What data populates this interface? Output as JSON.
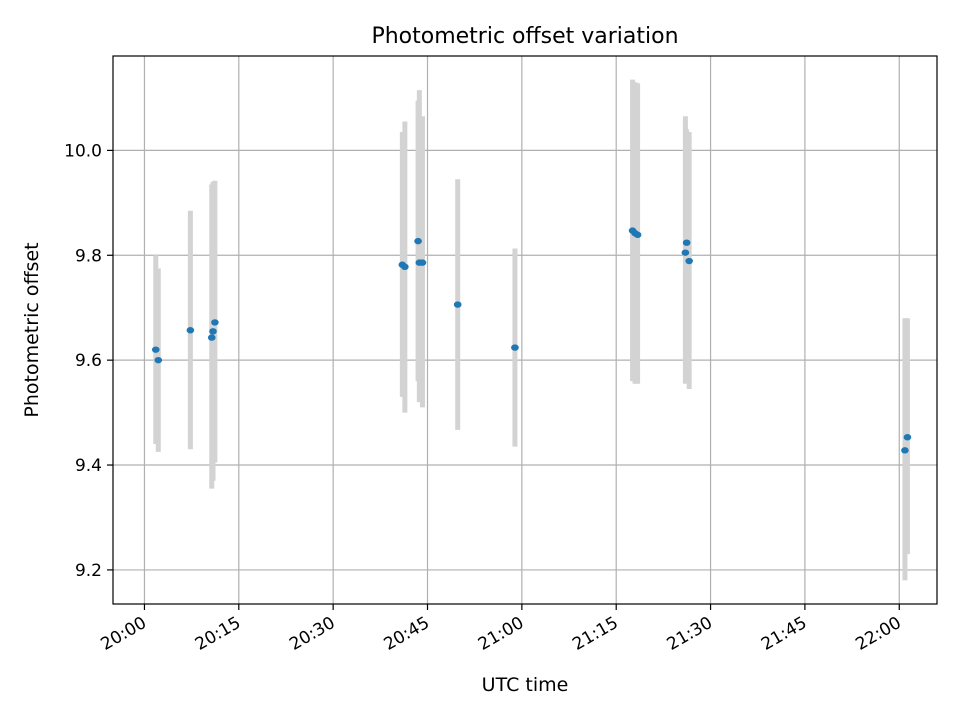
{
  "chart_data": {
    "type": "scatter",
    "title": "Photometric offset variation",
    "xlabel": "UTC time",
    "ylabel": "Photometric offset",
    "x_unit": "minutes after 20:00 UTC",
    "xlim": [
      -5,
      126
    ],
    "ylim": [
      9.135,
      10.18
    ],
    "grid": true,
    "marker_color": "#1f77b4",
    "errorbar_color": "#d3d3d3",
    "x_ticks": [
      {
        "value": 0,
        "label": "20:00"
      },
      {
        "value": 15,
        "label": "20:15"
      },
      {
        "value": 30,
        "label": "20:30"
      },
      {
        "value": 45,
        "label": "20:45"
      },
      {
        "value": 60,
        "label": "21:00"
      },
      {
        "value": 75,
        "label": "21:15"
      },
      {
        "value": 90,
        "label": "21:30"
      },
      {
        "value": 105,
        "label": "21:45"
      },
      {
        "value": 120,
        "label": "22:00"
      }
    ],
    "y_ticks": [
      {
        "value": 9.2,
        "label": "9.2"
      },
      {
        "value": 9.4,
        "label": "9.4"
      },
      {
        "value": 9.6,
        "label": "9.6"
      },
      {
        "value": 9.8,
        "label": "9.8"
      },
      {
        "value": 10.0,
        "label": "10.0"
      }
    ],
    "points": [
      {
        "x": 1.8,
        "y": 9.62,
        "err_low": 9.44,
        "err_high": 9.8
      },
      {
        "x": 2.2,
        "y": 9.6,
        "err_low": 9.425,
        "err_high": 9.775
      },
      {
        "x": 7.3,
        "y": 9.657,
        "err_low": 9.43,
        "err_high": 9.885
      },
      {
        "x": 10.7,
        "y": 9.643,
        "err_low": 9.355,
        "err_high": 9.935
      },
      {
        "x": 10.9,
        "y": 9.655,
        "err_low": 9.37,
        "err_high": 9.94
      },
      {
        "x": 11.2,
        "y": 9.672,
        "err_low": 9.405,
        "err_high": 9.942
      },
      {
        "x": 41.0,
        "y": 9.782,
        "err_low": 9.53,
        "err_high": 10.035
      },
      {
        "x": 41.4,
        "y": 9.778,
        "err_low": 9.5,
        "err_high": 10.055
      },
      {
        "x": 43.5,
        "y": 9.827,
        "err_low": 9.56,
        "err_high": 10.095
      },
      {
        "x": 43.7,
        "y": 9.786,
        "err_low": 9.52,
        "err_high": 10.115
      },
      {
        "x": 44.2,
        "y": 9.786,
        "err_low": 9.51,
        "err_high": 10.065
      },
      {
        "x": 49.8,
        "y": 9.706,
        "err_low": 9.467,
        "err_high": 9.945
      },
      {
        "x": 58.9,
        "y": 9.624,
        "err_low": 9.435,
        "err_high": 9.813
      },
      {
        "x": 77.6,
        "y": 9.847,
        "err_low": 9.56,
        "err_high": 10.135
      },
      {
        "x": 78.0,
        "y": 9.842,
        "err_low": 9.555,
        "err_high": 10.13
      },
      {
        "x": 78.4,
        "y": 9.839,
        "err_low": 9.555,
        "err_high": 10.128
      },
      {
        "x": 86.0,
        "y": 9.805,
        "err_low": 9.555,
        "err_high": 10.065
      },
      {
        "x": 86.2,
        "y": 9.824,
        "err_low": 9.57,
        "err_high": 10.04
      },
      {
        "x": 86.6,
        "y": 9.789,
        "err_low": 9.545,
        "err_high": 10.035
      },
      {
        "x": 120.9,
        "y": 9.428,
        "err_low": 9.18,
        "err_high": 9.68
      },
      {
        "x": 121.3,
        "y": 9.453,
        "err_low": 9.23,
        "err_high": 9.68
      }
    ]
  }
}
